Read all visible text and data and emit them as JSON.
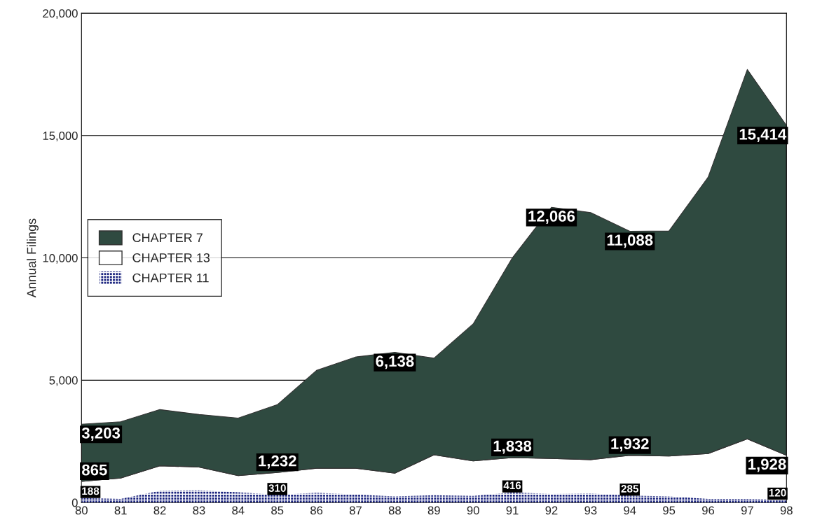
{
  "chart_data": {
    "type": "area",
    "ylabel": "Annual Filings",
    "x": [
      80,
      81,
      82,
      83,
      84,
      85,
      86,
      87,
      88,
      89,
      90,
      91,
      92,
      93,
      94,
      95,
      96,
      97,
      98
    ],
    "series": [
      {
        "name": "CHAPTER 7",
        "color": "#2f4a40",
        "values": [
          3203,
          3300,
          3800,
          3600,
          3450,
          4000,
          5400,
          5950,
          6138,
          5900,
          7300,
          10000,
          12066,
          11850,
          11088,
          11100,
          13300,
          17700,
          15414
        ],
        "value_labels": [
          "3,203",
          null,
          null,
          null,
          null,
          null,
          null,
          null,
          "6,138",
          null,
          null,
          null,
          "12,066",
          null,
          "11,088",
          null,
          null,
          null,
          "15,414"
        ]
      },
      {
        "name": "CHAPTER 13",
        "color": "#ffffff",
        "values": [
          865,
          1000,
          1500,
          1450,
          1100,
          1232,
          1400,
          1400,
          1200,
          1950,
          1700,
          1838,
          1800,
          1750,
          1932,
          1900,
          2000,
          2600,
          1928
        ],
        "value_labels": [
          "865",
          null,
          null,
          null,
          null,
          "1,232",
          null,
          null,
          null,
          null,
          null,
          "1,838",
          null,
          null,
          "1,932",
          null,
          null,
          null,
          "1,928"
        ]
      },
      {
        "name": "CHAPTER 11",
        "color": "#1a237e",
        "values": [
          188,
          150,
          480,
          500,
          420,
          310,
          400,
          330,
          250,
          300,
          270,
          416,
          350,
          370,
          285,
          250,
          150,
          150,
          120
        ],
        "value_labels": [
          "188",
          null,
          null,
          null,
          null,
          "310",
          null,
          null,
          null,
          null,
          null,
          "416",
          null,
          null,
          "285",
          null,
          null,
          null,
          "120"
        ]
      }
    ],
    "xlim": [
      80,
      98
    ],
    "xticks": [
      80,
      81,
      82,
      83,
      84,
      85,
      86,
      87,
      88,
      89,
      90,
      91,
      92,
      93,
      94,
      95,
      96,
      97,
      98
    ],
    "ylim": [
      0,
      20000
    ],
    "yticks": [
      {
        "value": 0,
        "label": "0"
      },
      {
        "value": 5000,
        "label": "5,000"
      },
      {
        "value": 10000,
        "label": "10,000"
      },
      {
        "value": 15000,
        "label": "15,000"
      },
      {
        "value": 20000,
        "label": "20,000"
      }
    ],
    "grid": "y",
    "legend": "center left"
  }
}
